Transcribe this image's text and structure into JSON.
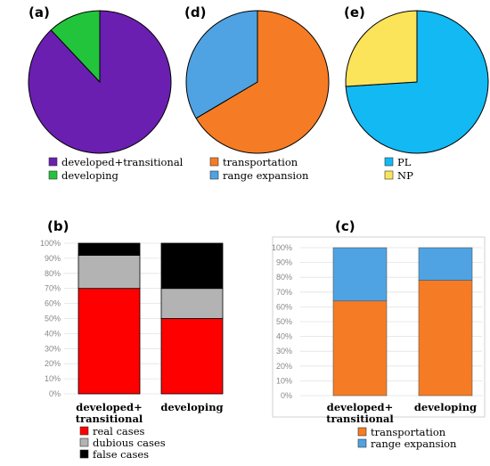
{
  "panels": {
    "a": "(a)",
    "d": "(d)",
    "e": "(e)",
    "b": "(b)",
    "c": "(c)"
  },
  "chart_data": [
    {
      "id": "a",
      "type": "pie",
      "labels": [
        "developed+transitional",
        "developing"
      ],
      "values": [
        88,
        12
      ],
      "colors": [
        "#6a1fb0",
        "#22c43b"
      ]
    },
    {
      "id": "d",
      "type": "pie",
      "labels": [
        "transportation",
        "range expansion"
      ],
      "values": [
        66.5,
        33.5
      ],
      "colors": [
        "#f57c25",
        "#4fa3e2"
      ]
    },
    {
      "id": "e",
      "type": "pie",
      "labels": [
        "PL",
        "NP"
      ],
      "values": [
        74,
        26
      ],
      "colors": [
        "#12b9f2",
        "#fce45a"
      ]
    },
    {
      "id": "b",
      "type": "bar",
      "stacked": true,
      "categories": [
        "developed+\ntransitional",
        "developing"
      ],
      "series": [
        {
          "name": "real cases",
          "values": [
            70,
            50
          ],
          "color": "#ff0000"
        },
        {
          "name": "dubious cases",
          "values": [
            22,
            20
          ],
          "color": "#b3b3b3"
        },
        {
          "name": "false cases",
          "values": [
            8,
            30
          ],
          "color": "#000000"
        }
      ],
      "yticks": [
        "0%",
        "10%",
        "20%",
        "30%",
        "40%",
        "50%",
        "60%",
        "70%",
        "80%",
        "90%",
        "100%"
      ],
      "ylim": [
        0,
        100
      ]
    },
    {
      "id": "c",
      "type": "bar",
      "stacked": true,
      "categories": [
        "developed+\ntransitional",
        "developing"
      ],
      "series": [
        {
          "name": "transportation",
          "values": [
            64,
            78
          ],
          "color": "#f57c25"
        },
        {
          "name": "range expansion",
          "values": [
            36,
            22
          ],
          "color": "#4fa3e2"
        }
      ],
      "yticks": [
        "0%",
        "10%",
        "20%",
        "30%",
        "40%",
        "50%",
        "60%",
        "70%",
        "80%",
        "90%",
        "100%"
      ],
      "ylim": [
        0,
        100
      ]
    }
  ]
}
